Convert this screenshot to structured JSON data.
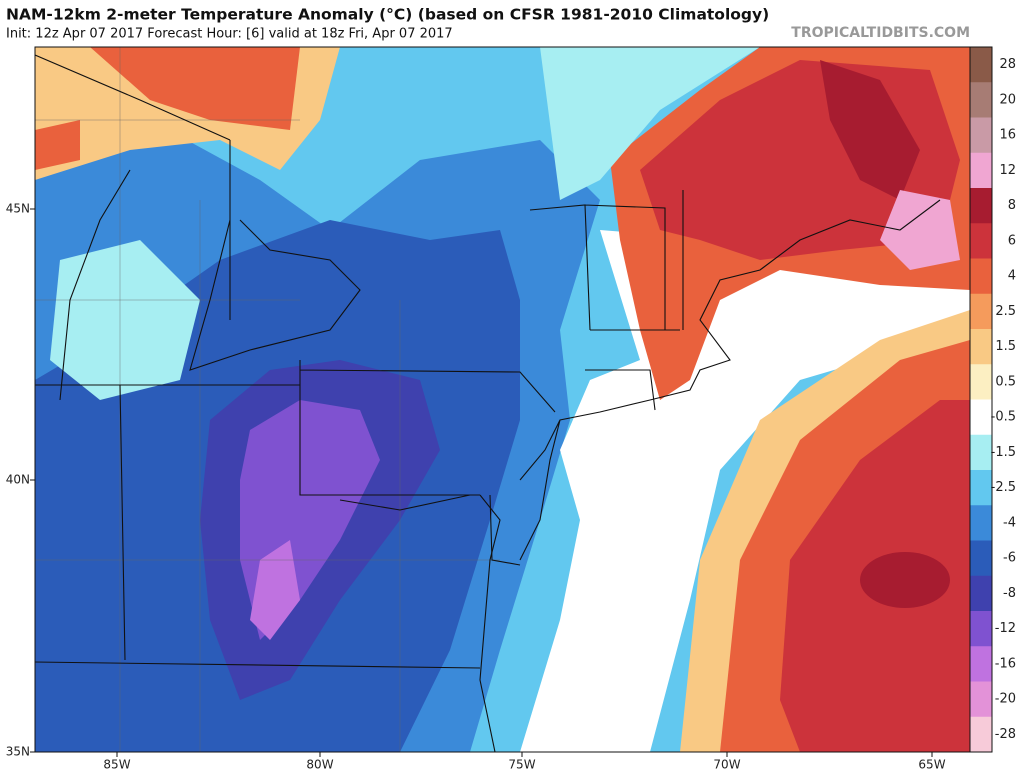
{
  "header": {
    "title": "NAM-12km 2-meter Temperature Anomaly (°C) (based on CFSR 1981-2010 Climatology)",
    "subtitle": "Init: 12z Apr 07 2017   Forecast Hour: [6]   valid at 18z Fri, Apr 07 2017",
    "watermark": "TROPICALTIDBITS.COM"
  },
  "map": {
    "lat_labels": [
      "45N",
      "40N",
      "35N"
    ],
    "lon_labels": [
      "85W",
      "80W",
      "75W",
      "70W",
      "65W"
    ]
  },
  "colorbar": {
    "ticks": [
      28,
      20,
      16,
      12,
      8,
      6,
      4,
      2.5,
      1.5,
      0.5,
      -0.5,
      -1.5,
      -2.5,
      -4,
      -6,
      -8,
      -12,
      -16,
      -20,
      -28
    ],
    "colors": [
      "#8a5a48",
      "#a77c74",
      "#c99aa6",
      "#f0a6d2",
      "#a71c30",
      "#cc333b",
      "#e9613d",
      "#f59b5c",
      "#f9c984",
      "#fcefc2",
      "#ffffff",
      "#a7eef2",
      "#62c8ef",
      "#3b8ad9",
      "#2b5cb9",
      "#3f41ae",
      "#7f52d0",
      "#bf72e0",
      "#e392d8",
      "#f7cbd9"
    ]
  }
}
